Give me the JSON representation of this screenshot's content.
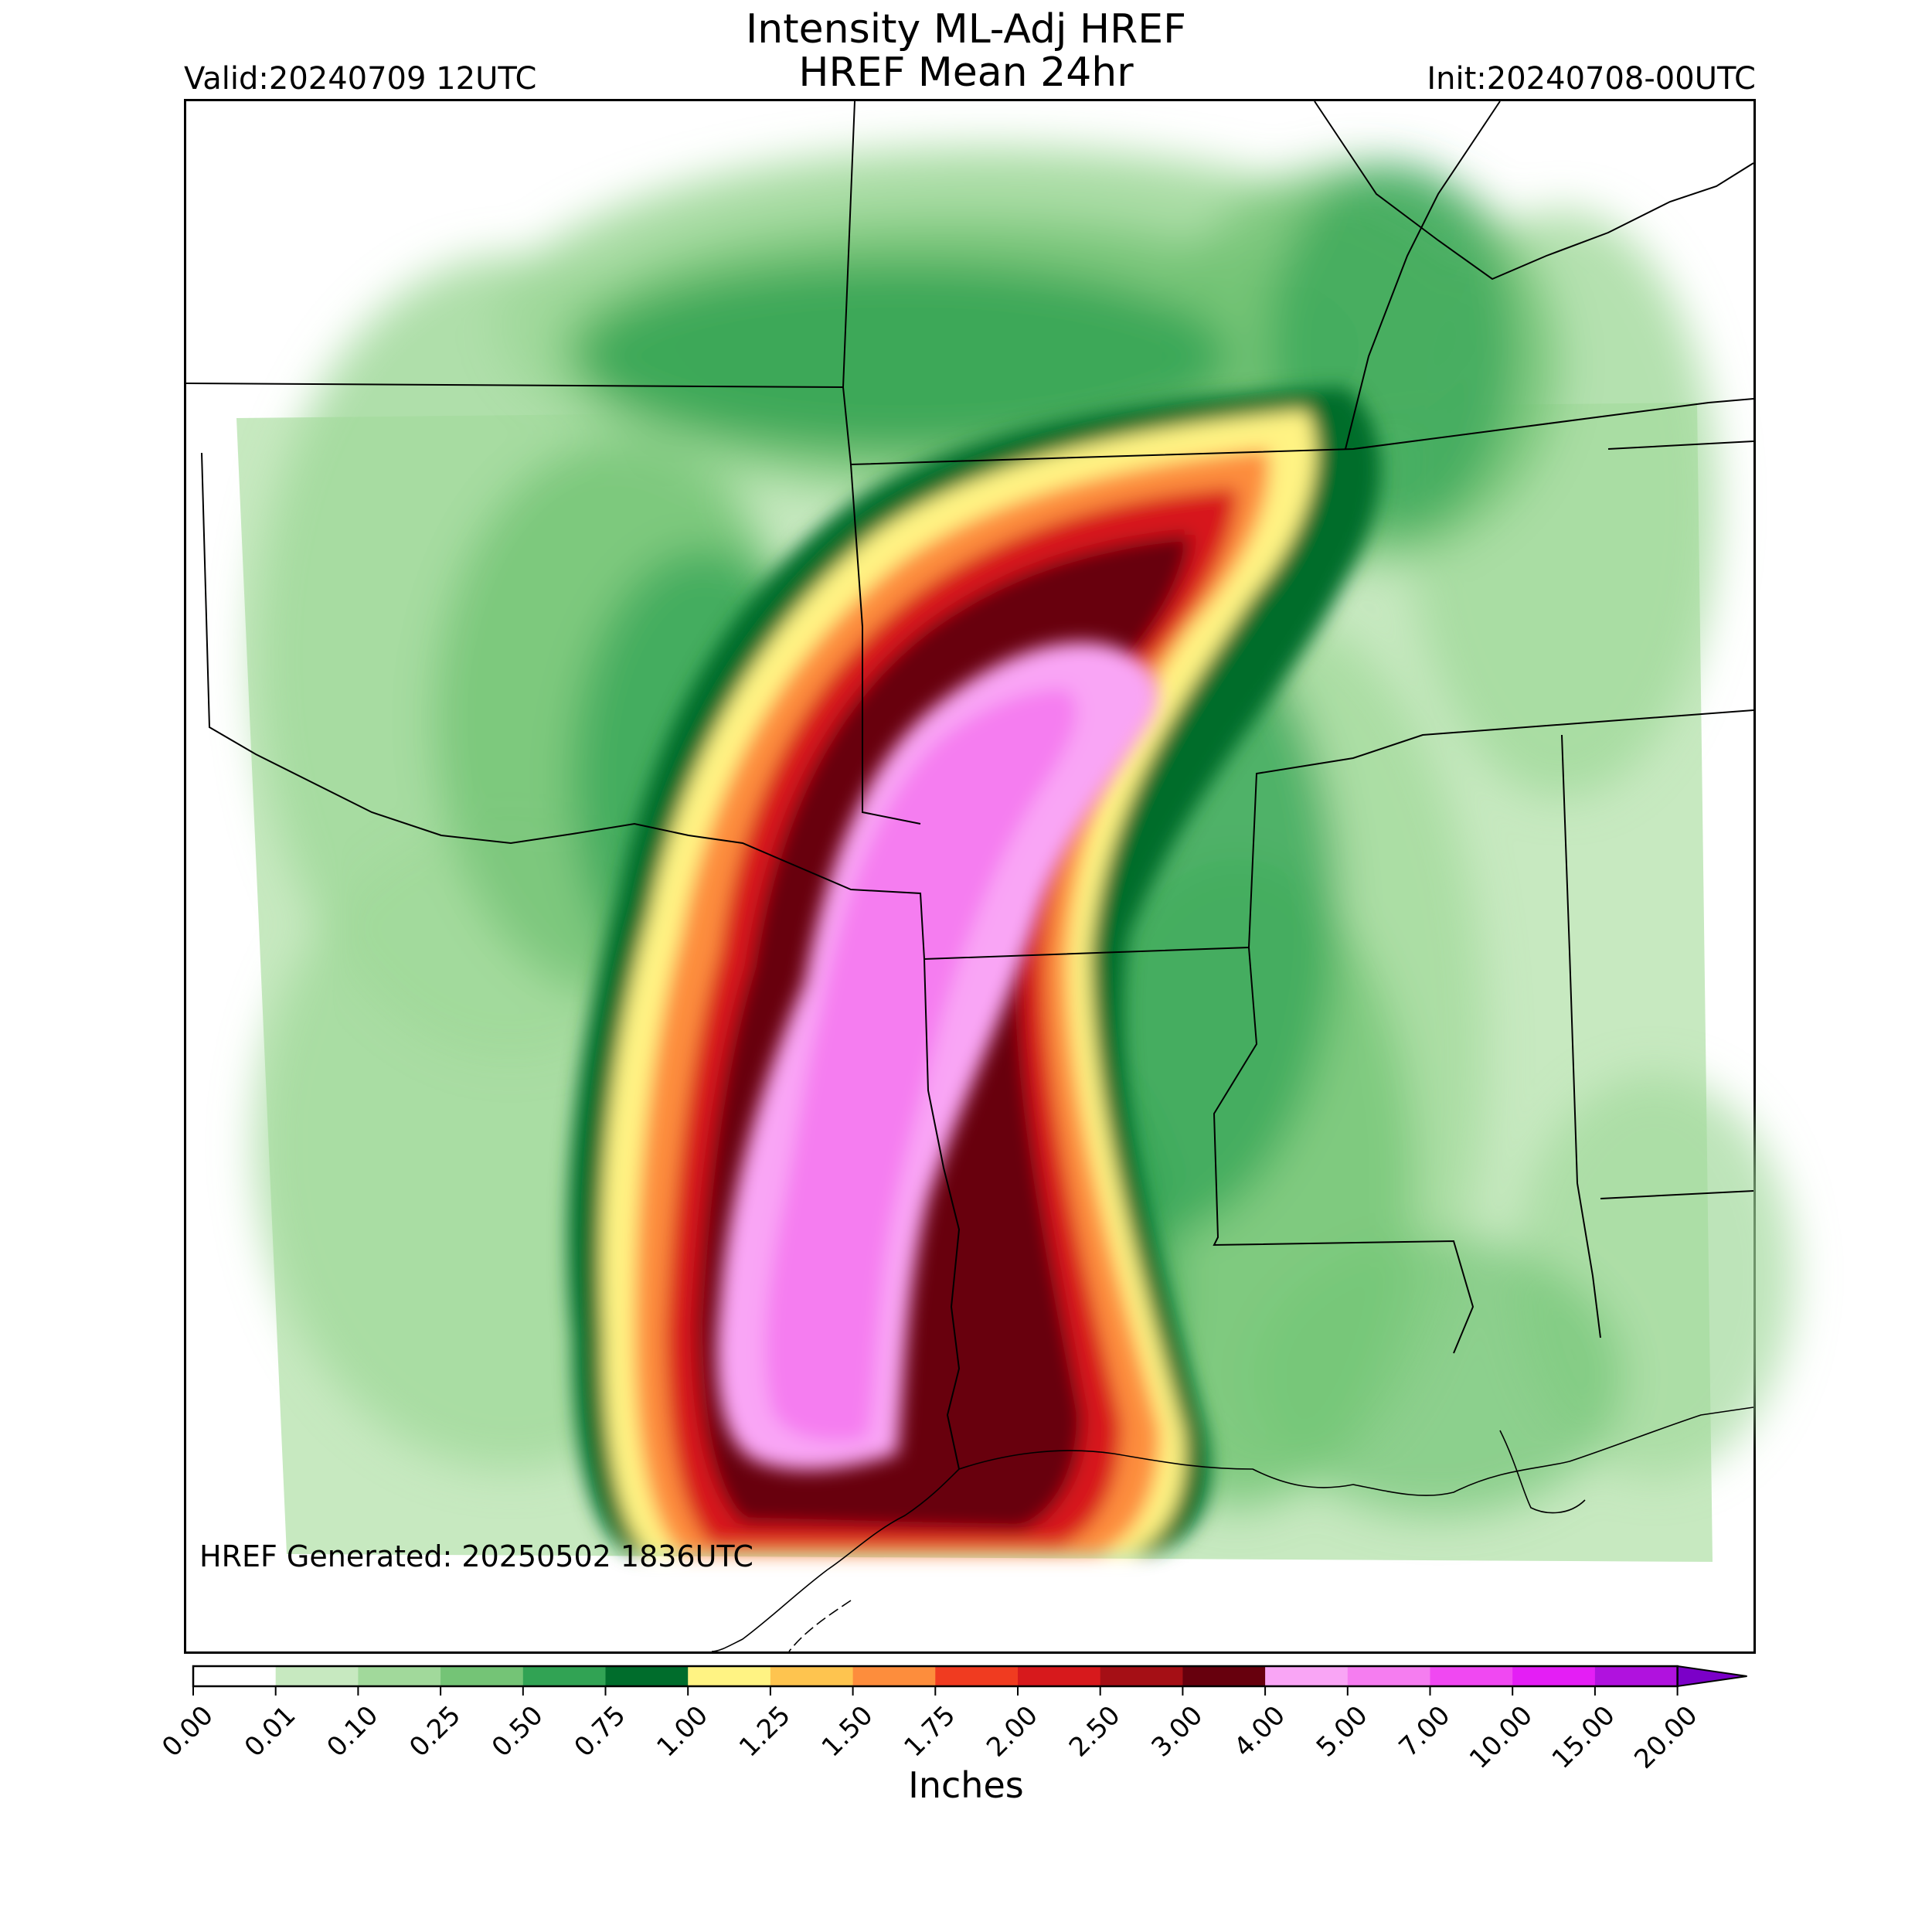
{
  "title_line1": "Intensity ML-Adj HREF",
  "title_line2": "HREF Mean 24hr",
  "valid_label": "Valid:20240709 12UTC",
  "init_label": "Init:20240708-00UTC",
  "generated_label": "HREF Generated: 20250502 1836UTC",
  "colorbar": {
    "title": "Inches",
    "ticks": [
      "0.00",
      "0.01",
      "0.10",
      "0.25",
      "0.50",
      "0.75",
      "1.00",
      "1.25",
      "1.50",
      "1.75",
      "2.00",
      "2.50",
      "3.00",
      "4.00",
      "5.00",
      "7.00",
      "10.00",
      "15.00",
      "20.00"
    ],
    "colors": [
      "#ffffff",
      "#c7e9c0",
      "#a1d99b",
      "#74c476",
      "#31a354",
      "#006d2c",
      "#fff383",
      "#fec44f",
      "#fd8d3c",
      "#f03b20",
      "#d7191c",
      "#a50f15",
      "#67000d",
      "#f9a5f5",
      "#f57df0",
      "#f048f2",
      "#e41ef5",
      "#b012de",
      "#7b00c8"
    ],
    "extend": "max"
  }
}
